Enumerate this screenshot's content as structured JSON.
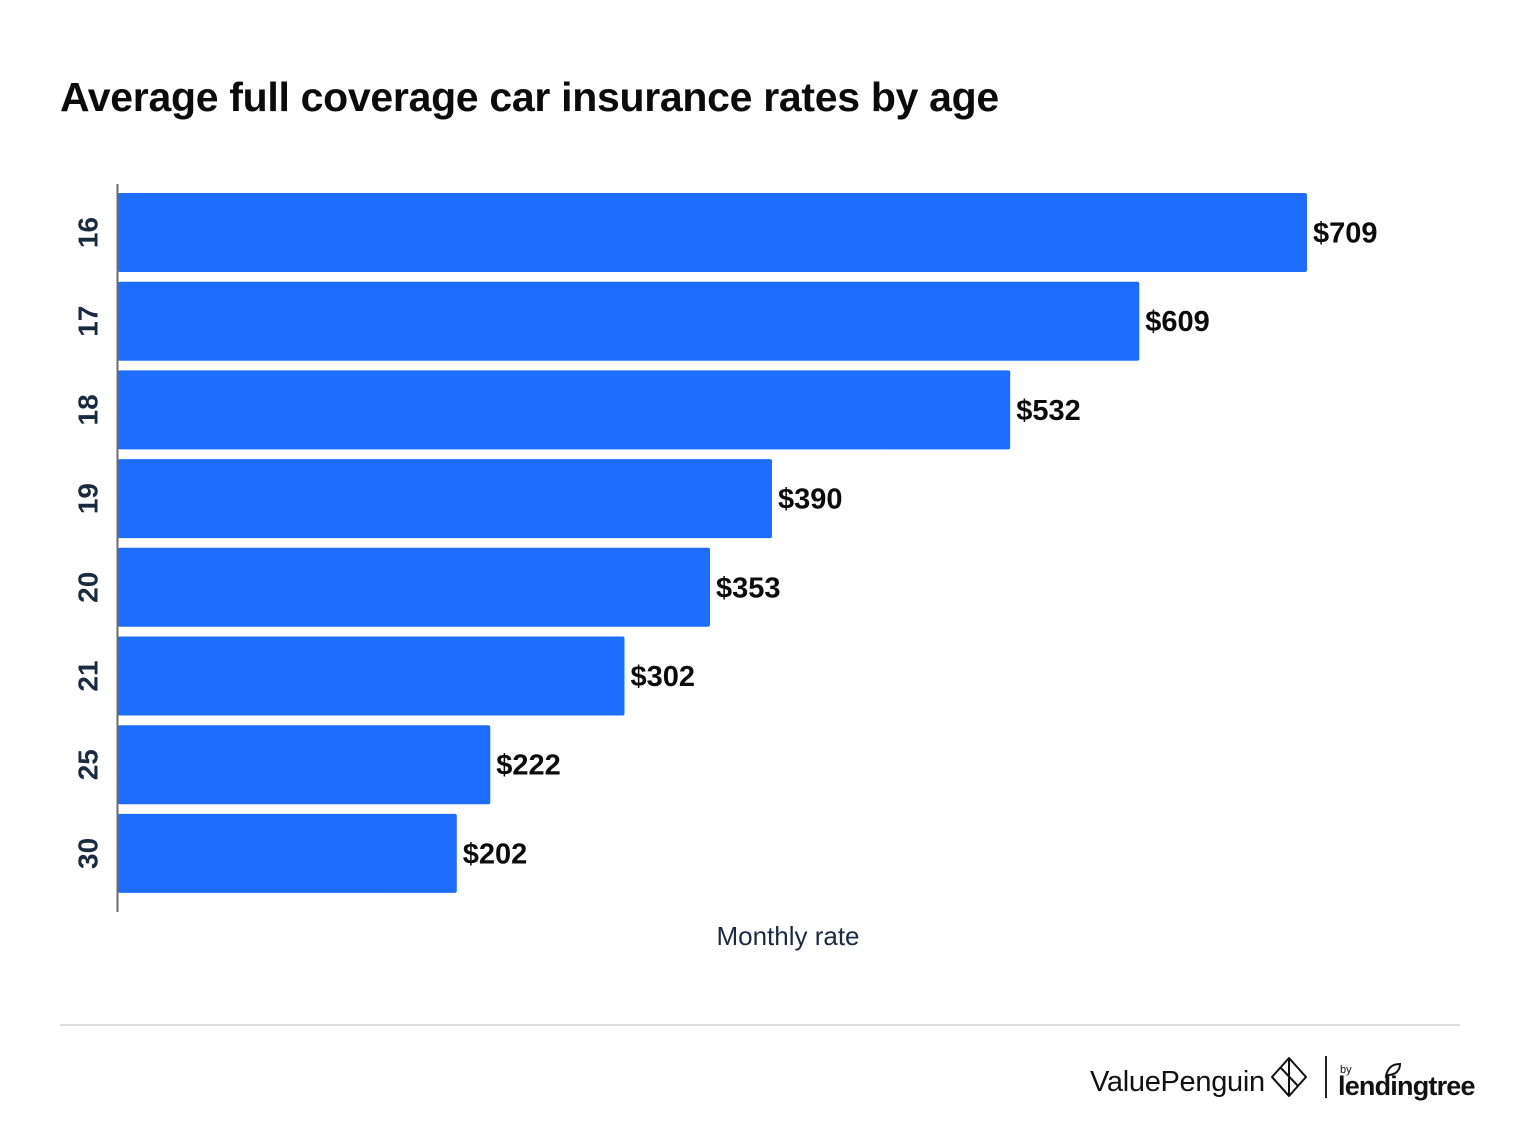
{
  "header": {
    "title": "Average full coverage car insurance rates by age"
  },
  "chart_data": {
    "type": "bar",
    "orientation": "horizontal",
    "title": "Average full coverage car insurance rates by age",
    "xlabel": "Monthly rate",
    "ylabel": "",
    "categories": [
      "16",
      "17",
      "18",
      "19",
      "20",
      "21",
      "25",
      "30"
    ],
    "values": [
      709,
      609,
      532,
      390,
      353,
      302,
      222,
      202
    ],
    "value_labels": [
      "$709",
      "$609",
      "$532",
      "$390",
      "$353",
      "$302",
      "$222",
      "$202"
    ],
    "xlim": [
      0,
      709
    ],
    "grid": false,
    "legend": "none",
    "bar_color": "#1f6dff"
  },
  "footer": {
    "brand_primary": "ValuePenguin",
    "brand_by": "by",
    "brand_secondary": "lendingtree"
  }
}
